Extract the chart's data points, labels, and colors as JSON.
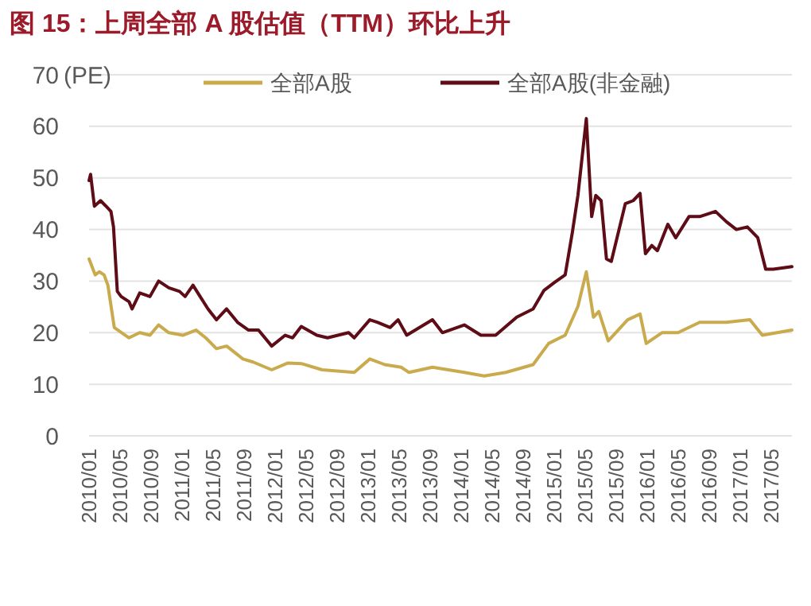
{
  "chart_data": {
    "type": "line",
    "title": "图 15：上周全部 A 股估值（TTM）环比上升",
    "ylabel": "(PE)",
    "xlim": [
      "2010-01-01",
      "2017-07-22"
    ],
    "ylim": [
      0,
      70
    ],
    "yticks": [
      0,
      10,
      20,
      30,
      40,
      50,
      60,
      70
    ],
    "xticks": [
      {
        "value": "2010-01",
        "label": "2010/01"
      },
      {
        "value": "2010-05",
        "label": "2010/05"
      },
      {
        "value": "2010-09",
        "label": "2010/09"
      },
      {
        "value": "2011-01",
        "label": "2011/01"
      },
      {
        "value": "2011-05",
        "label": "2011/05"
      },
      {
        "value": "2011-09",
        "label": "2011/09"
      },
      {
        "value": "2012-01",
        "label": "2012/01"
      },
      {
        "value": "2012-05",
        "label": "2012/05"
      },
      {
        "value": "2012-09",
        "label": "2012/09"
      },
      {
        "value": "2013-01",
        "label": "2013/01"
      },
      {
        "value": "2013-05",
        "label": "2013/05"
      },
      {
        "value": "2013-09",
        "label": "2013/09"
      },
      {
        "value": "2014-01",
        "label": "2014/01"
      },
      {
        "value": "2014-05",
        "label": "2014/05"
      },
      {
        "value": "2014-09",
        "label": "2014/09"
      },
      {
        "value": "2015-01",
        "label": "2015/01"
      },
      {
        "value": "2015-05",
        "label": "2015/05"
      },
      {
        "value": "2015-09",
        "label": "2015/09"
      },
      {
        "value": "2016-01",
        "label": "2016/01"
      },
      {
        "value": "2016-05",
        "label": "2016/05"
      },
      {
        "value": "2016-09",
        "label": "2016/09"
      },
      {
        "value": "2017-01",
        "label": "2017/01"
      },
      {
        "value": "2017-05",
        "label": "2017/05"
      }
    ],
    "grid": "y",
    "legend": "top",
    "series": [
      {
        "name": "全部A股",
        "color": "#c9ab4e",
        "x": [
          "2010-01-01",
          "2010-01-25",
          "2010-02-10",
          "2010-03-01",
          "2010-03-16",
          "2010-04-10",
          "2010-06-07",
          "2010-07-19",
          "2010-08-28",
          "2010-10-01",
          "2010-11-10",
          "2011-01-04",
          "2011-02-25",
          "2011-04-04",
          "2011-05-16",
          "2011-06-25",
          "2011-08-28",
          "2011-10-07",
          "2011-12-19",
          "2012-02-19",
          "2012-04-13",
          "2012-07-04",
          "2012-11-07",
          "2013-01-07",
          "2013-03-07",
          "2013-05-10",
          "2013-06-10",
          "2013-09-10",
          "2014-01-13",
          "2014-04-01",
          "2014-06-25",
          "2014-10-10",
          "2014-12-10",
          "2015-02-13",
          "2015-04-04",
          "2015-05-07",
          "2015-06-04",
          "2015-06-25",
          "2015-08-01",
          "2015-10-16",
          "2015-12-04",
          "2015-12-28",
          "2016-02-28",
          "2016-05-01",
          "2016-07-25",
          "2016-11-07",
          "2017-02-07",
          "2017-03-28",
          "2017-07-22"
        ],
        "values": [
          34.3,
          31.2,
          31.8,
          31.2,
          29.2,
          21,
          19,
          20,
          19.5,
          21.5,
          20,
          19.5,
          20.5,
          19,
          16.9,
          17.4,
          14.9,
          14.3,
          12.8,
          14.1,
          14,
          12.8,
          12.3,
          14.9,
          13.8,
          13.3,
          12.3,
          13.3,
          12.3,
          11.6,
          12.3,
          13.8,
          17.9,
          19.5,
          25.1,
          31.8,
          23,
          24.1,
          18.4,
          22.5,
          23.6,
          17.9,
          20,
          20,
          22,
          22,
          22.5,
          19.5,
          20.5
        ]
      },
      {
        "name": "全部A股(非金融)",
        "color": "#5e0c16",
        "x": [
          "2010-01-01",
          "2010-01-07",
          "2010-01-22",
          "2010-02-15",
          "2010-03-07",
          "2010-03-28",
          "2010-04-07",
          "2010-04-22",
          "2010-05-07",
          "2010-06-07",
          "2010-06-19",
          "2010-07-19",
          "2010-08-28",
          "2010-10-01",
          "2010-11-10",
          "2010-12-22",
          "2011-01-13",
          "2011-02-13",
          "2011-03-13",
          "2011-04-13",
          "2011-05-16",
          "2011-06-25",
          "2011-08-07",
          "2011-09-19",
          "2011-10-28",
          "2011-12-19",
          "2012-02-10",
          "2012-03-10",
          "2012-04-13",
          "2012-06-13",
          "2012-07-25",
          "2012-10-16",
          "2012-11-07",
          "2013-01-07",
          "2013-02-07",
          "2013-03-28",
          "2013-04-28",
          "2013-06-01",
          "2013-09-10",
          "2013-10-19",
          "2014-01-13",
          "2014-03-19",
          "2014-05-16",
          "2014-08-07",
          "2014-10-10",
          "2014-11-22",
          "2015-01-01",
          "2015-02-13",
          "2015-03-13",
          "2015-04-04",
          "2015-05-07",
          "2015-05-28",
          "2015-06-13",
          "2015-07-04",
          "2015-07-25",
          "2015-08-13",
          "2015-10-07",
          "2015-11-07",
          "2015-12-04",
          "2015-12-25",
          "2016-01-19",
          "2016-02-10",
          "2016-03-22",
          "2016-04-22",
          "2016-06-13",
          "2016-07-25",
          "2016-09-25",
          "2016-11-07",
          "2016-12-16",
          "2017-01-28",
          "2017-03-10",
          "2017-04-10",
          "2017-05-10",
          "2017-07-22"
        ],
        "values": [
          49.5,
          50.7,
          44.5,
          45.6,
          44.6,
          43.5,
          40.5,
          28,
          27,
          26,
          24.6,
          27.7,
          27,
          30,
          28.7,
          28,
          27,
          29.2,
          27,
          24.6,
          22.5,
          24.6,
          22,
          20.5,
          20.5,
          17.4,
          19.5,
          19,
          21.2,
          19.5,
          19,
          20,
          19,
          22.5,
          22,
          21,
          22.5,
          19.5,
          22.5,
          20,
          21.5,
          19.5,
          19.5,
          23,
          24.6,
          28.2,
          29.7,
          31.2,
          39.4,
          46.6,
          61.5,
          42.5,
          46.6,
          45.6,
          34.3,
          33.8,
          45,
          45.6,
          47,
          35.3,
          36.9,
          35.9,
          41,
          38.4,
          42.5,
          42.5,
          43.5,
          41.5,
          40,
          40.5,
          38.4,
          32.3,
          32.3,
          32.8
        ]
      }
    ]
  }
}
